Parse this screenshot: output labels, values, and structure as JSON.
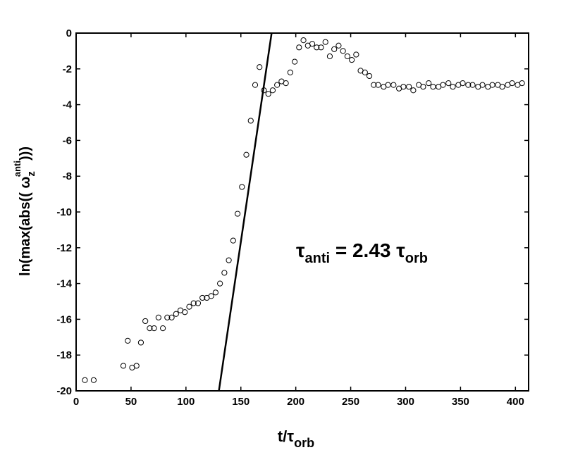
{
  "chart_data": {
    "type": "scatter",
    "x": [
      8,
      16,
      43,
      47,
      51,
      55,
      59,
      63,
      67,
      71,
      75,
      79,
      83,
      87,
      91,
      95,
      99,
      103,
      107,
      111,
      115,
      119,
      123,
      127,
      131,
      135,
      139,
      143,
      147,
      151,
      155,
      159,
      163,
      167,
      171,
      175,
      179,
      183,
      187,
      191,
      195,
      199,
      203,
      207,
      211,
      215,
      219,
      223,
      227,
      231,
      235,
      239,
      243,
      247,
      251,
      255,
      259,
      263,
      267,
      271,
      275,
      280,
      284,
      289,
      294,
      298,
      303,
      307,
      312,
      316,
      321,
      325,
      330,
      334,
      339,
      343,
      348,
      352,
      357,
      361,
      366,
      370,
      375,
      379,
      384,
      388,
      393,
      397,
      402,
      406
    ],
    "y": [
      -19.4,
      -19.4,
      -18.6,
      -17.2,
      -18.7,
      -18.6,
      -17.3,
      -16.1,
      -16.5,
      -16.5,
      -15.9,
      -16.5,
      -15.9,
      -15.9,
      -15.7,
      -15.5,
      -15.6,
      -15.3,
      -15.1,
      -15.1,
      -14.8,
      -14.8,
      -14.7,
      -14.5,
      -14.0,
      -13.4,
      -12.7,
      -11.6,
      -10.1,
      -8.6,
      -6.8,
      -4.9,
      -2.9,
      -1.9,
      -3.2,
      -3.4,
      -3.2,
      -2.9,
      -2.7,
      -2.8,
      -2.2,
      -1.6,
      -0.8,
      -0.4,
      -0.7,
      -0.6,
      -0.8,
      -0.8,
      -0.5,
      -1.3,
      -0.9,
      -0.7,
      -1.0,
      -1.3,
      -1.5,
      -1.2,
      -2.1,
      -2.2,
      -2.4,
      -2.9,
      -2.9,
      -3.0,
      -2.9,
      -2.9,
      -3.1,
      -3.0,
      -3.0,
      -3.2,
      -2.9,
      -3.0,
      -2.8,
      -3.0,
      -3.0,
      -2.9,
      -2.8,
      -3.0,
      -2.9,
      -2.8,
      -2.9,
      -2.9,
      -3.0,
      -2.9,
      -3.0,
      -2.9,
      -2.9,
      -3.0,
      -2.9,
      -2.8,
      -2.9,
      -2.8
    ],
    "marker_color": "#000000",
    "fit_line": {
      "x": [
        130,
        178
      ],
      "y": [
        -20,
        0
      ],
      "color": "#000000"
    },
    "xlim": [
      0,
      412
    ],
    "ylim": [
      -20,
      0
    ],
    "xticks": [
      0,
      50,
      100,
      150,
      200,
      250,
      300,
      350,
      400
    ],
    "yticks": [
      -20,
      -18,
      -16,
      -14,
      -12,
      -10,
      -8,
      -6,
      -4,
      -2,
      0
    ],
    "xlabel": {
      "main": "t/τ",
      "sub": "orb"
    },
    "ylabel": {
      "pre": "ln(max(abs(( ω",
      "sub": "z",
      "sup": "anti",
      "post": ")))"
    },
    "annotation": {
      "tau": "τ",
      "sub": "anti",
      "mid": " = 2.43 ",
      "tau2": "τ",
      "sub2": "orb"
    }
  }
}
